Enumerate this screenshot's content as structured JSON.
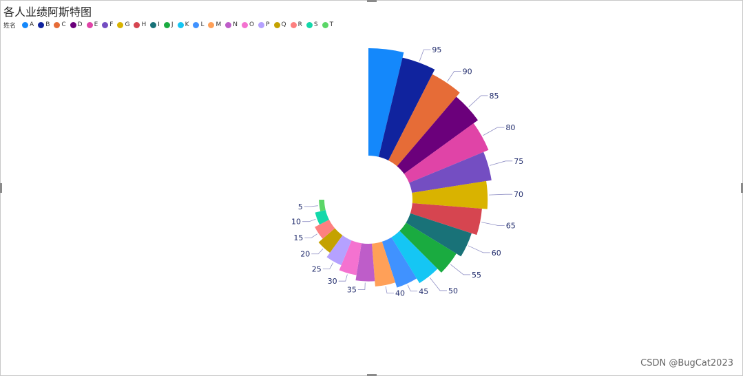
{
  "title": "各人业绩阿斯特图",
  "legend": {
    "name": "姓名",
    "items": [
      {
        "label": "A",
        "color": "#1488fb"
      },
      {
        "label": "B",
        "color": "#10239e"
      },
      {
        "label": "C",
        "color": "#e66c37"
      },
      {
        "label": "D",
        "color": "#6b007b"
      },
      {
        "label": "E",
        "color": "#e044a7"
      },
      {
        "label": "F",
        "color": "#744ec2"
      },
      {
        "label": "G",
        "color": "#d9b300"
      },
      {
        "label": "H",
        "color": "#d64550"
      },
      {
        "label": "I",
        "color": "#197278"
      },
      {
        "label": "J",
        "color": "#1aab40"
      },
      {
        "label": "K",
        "color": "#15c6f4"
      },
      {
        "label": "L",
        "color": "#4092ff"
      },
      {
        "label": "M",
        "color": "#ffa058"
      },
      {
        "label": "N",
        "color": "#be5dc9"
      },
      {
        "label": "O",
        "color": "#f472d0"
      },
      {
        "label": "P",
        "color": "#b5a1ff"
      },
      {
        "label": "Q",
        "color": "#c4a200"
      },
      {
        "label": "R",
        "color": "#fd8080"
      },
      {
        "label": "S",
        "color": "#13d8aa"
      },
      {
        "label": "T",
        "color": "#5bd667"
      }
    ]
  },
  "chart_data": {
    "type": "aster",
    "title": "各人业绩阿斯特图",
    "legend_title": "姓名",
    "legend_position": "top-left",
    "categories": [
      "A",
      "B",
      "C",
      "D",
      "E",
      "F",
      "G",
      "H",
      "I",
      "J",
      "K",
      "L",
      "M",
      "N",
      "O",
      "P",
      "Q",
      "R",
      "S",
      "T"
    ],
    "values": [
      100,
      95,
      90,
      85,
      80,
      75,
      70,
      65,
      60,
      55,
      50,
      45,
      40,
      35,
      30,
      25,
      20,
      15,
      10,
      5
    ],
    "data_labels": [
      "",
      "95",
      "90",
      "85",
      "80",
      "75",
      "70",
      "65",
      "60",
      "55",
      "50",
      "45",
      "40",
      "35",
      "30",
      "25",
      "20",
      "15",
      "10",
      "5"
    ],
    "sweep_degrees": 270
  },
  "watermark": "CSDN @BugCat2023"
}
